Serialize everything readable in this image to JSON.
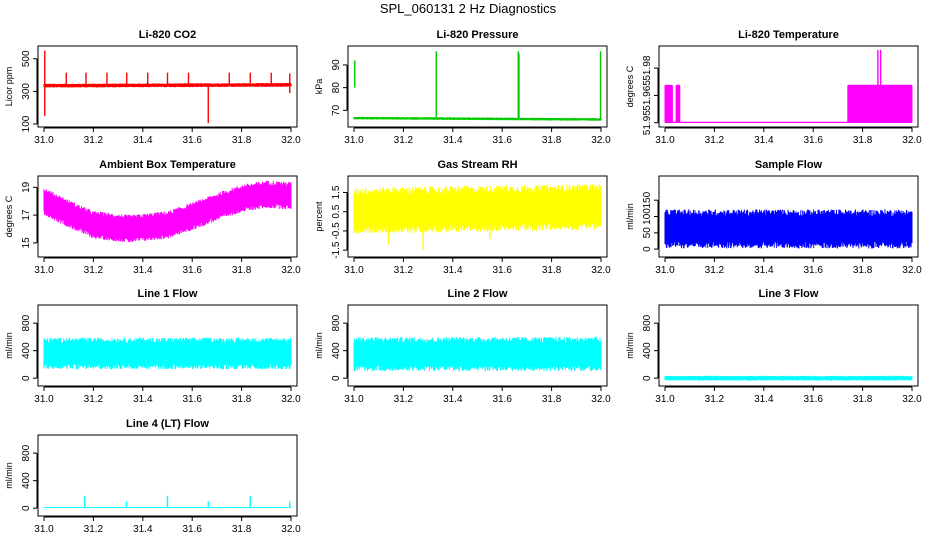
{
  "page": {
    "title": "SPL_060131  2 Hz Diagnostics"
  },
  "chart_data": [
    {
      "type": "line",
      "title": "Li-820 CO2",
      "xlabel": "",
      "ylabel": "Licor ppm",
      "xlim": [
        31.0,
        32.0
      ],
      "ylim": [
        100,
        560
      ],
      "xticks": [
        31.0,
        31.2,
        31.4,
        31.6,
        31.8,
        32.0
      ],
      "xtick_labels": [
        "31.0",
        "31.2",
        "31.4",
        "31.6",
        "31.8",
        "32.0"
      ],
      "yticks": [
        100,
        300,
        500
      ],
      "ytick_labels": [
        "100",
        "300",
        "500"
      ],
      "color": "#ff0000",
      "style": "band",
      "band_center": [
        [
          31.0,
          335
        ],
        [
          32.0,
          340
        ]
      ],
      "band_amp": 12,
      "events": [
        {
          "x": 31.003,
          "y0": 150,
          "y1": 550
        },
        {
          "x": 31.09,
          "y0": 330,
          "y1": 415
        },
        {
          "x": 31.17,
          "y0": 330,
          "y1": 415
        },
        {
          "x": 31.255,
          "y0": 330,
          "y1": 415
        },
        {
          "x": 31.335,
          "y0": 330,
          "y1": 415
        },
        {
          "x": 31.42,
          "y0": 330,
          "y1": 415
        },
        {
          "x": 31.5,
          "y0": 330,
          "y1": 415
        },
        {
          "x": 31.585,
          "y0": 330,
          "y1": 415
        },
        {
          "x": 31.665,
          "y0": 105,
          "y1": 330
        },
        {
          "x": 31.75,
          "y0": 330,
          "y1": 415
        },
        {
          "x": 31.835,
          "y0": 330,
          "y1": 415
        },
        {
          "x": 31.92,
          "y0": 330,
          "y1": 415
        },
        {
          "x": 31.995,
          "y0": 290,
          "y1": 410
        }
      ]
    },
    {
      "type": "line",
      "title": "Li-820 Pressure",
      "xlabel": "",
      "ylabel": "kPa",
      "xlim": [
        31.0,
        32.0
      ],
      "ylim": [
        64,
        97
      ],
      "xticks": [
        31.0,
        31.2,
        31.4,
        31.6,
        31.8,
        32.0
      ],
      "xtick_labels": [
        "31.0",
        "31.2",
        "31.4",
        "31.6",
        "31.8",
        "32.0"
      ],
      "yticks": [
        70,
        80,
        90
      ],
      "ytick_labels": [
        "70",
        "80",
        "90"
      ],
      "color": "#00cc00",
      "style": "band",
      "band_center": [
        [
          31.0,
          66.6
        ],
        [
          32.0,
          66.0
        ]
      ],
      "band_amp": 0.6,
      "events": [
        {
          "x": 31.003,
          "y0": 80,
          "y1": 92
        },
        {
          "x": 31.333,
          "y0": 66,
          "y1": 96
        },
        {
          "x": 31.665,
          "y0": 66,
          "y1": 96
        },
        {
          "x": 31.668,
          "y0": 66,
          "y1": 95
        },
        {
          "x": 31.998,
          "y0": 66,
          "y1": 96
        }
      ]
    },
    {
      "type": "line",
      "title": "Li-820 Temperature",
      "xlabel": "",
      "ylabel": "degrees C",
      "xlim": [
        31.0,
        32.0
      ],
      "ylim": [
        51.9493,
        51.9905
      ],
      "xticks": [
        31.0,
        31.2,
        31.4,
        31.6,
        31.8,
        32.0
      ],
      "xtick_labels": [
        "31.0",
        "31.2",
        "31.4",
        "31.6",
        "31.8",
        "32.0"
      ],
      "yticks": [
        51.95,
        51.965,
        51.98
      ],
      "ytick_labels": [
        "51.95",
        "51.965",
        "51.98"
      ],
      "color": "#ff00ff",
      "style": "levels",
      "base": 51.9502,
      "high": 51.9705,
      "high_ranges": [
        [
          31.0,
          31.03
        ],
        [
          31.045,
          31.06
        ],
        [
          31.74,
          32.0
        ]
      ],
      "events": [
        {
          "x": 31.862,
          "y0": 51.9705,
          "y1": 51.99
        },
        {
          "x": 31.873,
          "y0": 51.9705,
          "y1": 51.99
        }
      ]
    },
    {
      "type": "line",
      "title": "Ambient Box Temperature",
      "xlabel": "",
      "ylabel": "degrees C",
      "xlim": [
        31.0,
        32.0
      ],
      "ylim": [
        14.2,
        19.6
      ],
      "xticks": [
        31.0,
        31.2,
        31.4,
        31.6,
        31.8,
        32.0
      ],
      "xtick_labels": [
        "31.0",
        "31.2",
        "31.4",
        "31.6",
        "31.8",
        "32.0"
      ],
      "yticks": [
        15,
        17,
        19
      ],
      "ytick_labels": [
        "15",
        "17",
        "19"
      ],
      "color": "#ff00ff",
      "style": "band",
      "band_center": [
        [
          31.0,
          18.0
        ],
        [
          31.1,
          17.1
        ],
        [
          31.2,
          16.3
        ],
        [
          31.35,
          16.0
        ],
        [
          31.5,
          16.3
        ],
        [
          31.6,
          16.9
        ],
        [
          31.7,
          17.6
        ],
        [
          31.8,
          18.2
        ],
        [
          31.9,
          18.5
        ],
        [
          32.0,
          18.4
        ]
      ],
      "band_amp": 1.0,
      "events": []
    },
    {
      "type": "line",
      "title": "Gas Stream RH",
      "xlabel": "",
      "ylabel": "percent",
      "xlim": [
        31.0,
        32.0
      ],
      "ylim": [
        -1.7,
        2.2
      ],
      "xticks": [
        31.0,
        31.2,
        31.4,
        31.6,
        31.8,
        32.0
      ],
      "xtick_labels": [
        "31.0",
        "31.2",
        "31.4",
        "31.6",
        "31.8",
        "32.0"
      ],
      "yticks": [
        -1.5,
        -0.5,
        0.5,
        1.5
      ],
      "ytick_labels": [
        "-1.5",
        "-0.5",
        "0.5",
        "1.5"
      ],
      "color": "#ffff00",
      "style": "band",
      "band_center": [
        [
          31.0,
          0.55
        ],
        [
          32.0,
          0.75
        ]
      ],
      "band_amp": 1.2,
      "events": [
        {
          "x": 31.14,
          "y0": -0.2,
          "y1": -1.2
        },
        {
          "x": 31.28,
          "y0": -0.2,
          "y1": -1.5
        },
        {
          "x": 31.55,
          "y0": -0.2,
          "y1": -0.9
        }
      ]
    },
    {
      "type": "line",
      "title": "Sample Flow",
      "xlabel": "",
      "ylabel": "ml/min",
      "xlim": [
        31.0,
        32.0
      ],
      "ylim": [
        -15,
        215
      ],
      "xticks": [
        31.0,
        31.2,
        31.4,
        31.6,
        31.8,
        32.0
      ],
      "xtick_labels": [
        "31.0",
        "31.2",
        "31.4",
        "31.6",
        "31.8",
        "32.0"
      ],
      "yticks": [
        0,
        50,
        100,
        150
      ],
      "ytick_labels": [
        "0",
        "50",
        "100",
        "150"
      ],
      "color": "#0000ff",
      "style": "band",
      "band_center": [
        [
          31.0,
          62
        ],
        [
          32.0,
          62
        ]
      ],
      "band_amp": 60,
      "events": []
    },
    {
      "type": "line",
      "title": "Line 1 Flow",
      "xlabel": "",
      "ylabel": "ml/min",
      "xlim": [
        31.0,
        32.0
      ],
      "ylim": [
        -70,
        1020
      ],
      "xticks": [
        31.0,
        31.2,
        31.4,
        31.6,
        31.8,
        32.0
      ],
      "xtick_labels": [
        "31.0",
        "31.2",
        "31.4",
        "31.6",
        "31.8",
        "32.0"
      ],
      "yticks": [
        0,
        400,
        800
      ],
      "ytick_labels": [
        "0",
        "400",
        "800"
      ],
      "color": "#00ffff",
      "style": "band",
      "band_center": [
        [
          31.0,
          360
        ],
        [
          32.0,
          360
        ]
      ],
      "band_amp": 230,
      "events": []
    },
    {
      "type": "line",
      "title": "Line 2 Flow",
      "xlabel": "",
      "ylabel": "ml/min",
      "xlim": [
        31.0,
        32.0
      ],
      "ylim": [
        -70,
        1020
      ],
      "xticks": [
        31.0,
        31.2,
        31.4,
        31.6,
        31.8,
        32.0
      ],
      "xtick_labels": [
        "31.0",
        "31.2",
        "31.4",
        "31.6",
        "31.8",
        "32.0"
      ],
      "yticks": [
        0,
        400,
        800
      ],
      "ytick_labels": [
        "0",
        "400",
        "800"
      ],
      "color": "#00ffff",
      "style": "band",
      "band_center": [
        [
          31.0,
          350
        ],
        [
          32.0,
          350
        ]
      ],
      "band_amp": 250,
      "events": []
    },
    {
      "type": "line",
      "title": "Line 3 Flow",
      "xlabel": "",
      "ylabel": "ml/min",
      "xlim": [
        31.0,
        32.0
      ],
      "ylim": [
        -70,
        1020
      ],
      "xticks": [
        31.0,
        31.2,
        31.4,
        31.6,
        31.8,
        32.0
      ],
      "xtick_labels": [
        "31.0",
        "31.2",
        "31.4",
        "31.6",
        "31.8",
        "32.0"
      ],
      "yticks": [
        0,
        400,
        800
      ],
      "ytick_labels": [
        "0",
        "400",
        "800"
      ],
      "color": "#00ffff",
      "style": "band",
      "band_center": [
        [
          31.0,
          0
        ],
        [
          32.0,
          0
        ]
      ],
      "band_amp": 35,
      "events": []
    },
    {
      "type": "line",
      "title": "Line 4 (LT) Flow",
      "xlabel": "",
      "ylabel": "ml/min",
      "xlim": [
        31.0,
        32.0
      ],
      "ylim": [
        -70,
        1020
      ],
      "xticks": [
        31.0,
        31.2,
        31.4,
        31.6,
        31.8,
        32.0
      ],
      "xtick_labels": [
        "31.0",
        "31.2",
        "31.4",
        "31.6",
        "31.8",
        "32.0"
      ],
      "yticks": [
        0,
        400,
        800
      ],
      "ytick_labels": [
        "0",
        "400",
        "800"
      ],
      "color": "#00ffff",
      "style": "band",
      "band_center": [
        [
          31.0,
          10
        ],
        [
          32.0,
          10
        ]
      ],
      "band_amp": 8,
      "events": [
        {
          "x": 31.165,
          "y0": 10,
          "y1": 180
        },
        {
          "x": 31.335,
          "y0": 10,
          "y1": 100
        },
        {
          "x": 31.5,
          "y0": 10,
          "y1": 180
        },
        {
          "x": 31.665,
          "y0": 10,
          "y1": 100
        },
        {
          "x": 31.835,
          "y0": 10,
          "y1": 180
        },
        {
          "x": 31.995,
          "y0": 10,
          "y1": 100
        }
      ]
    }
  ]
}
